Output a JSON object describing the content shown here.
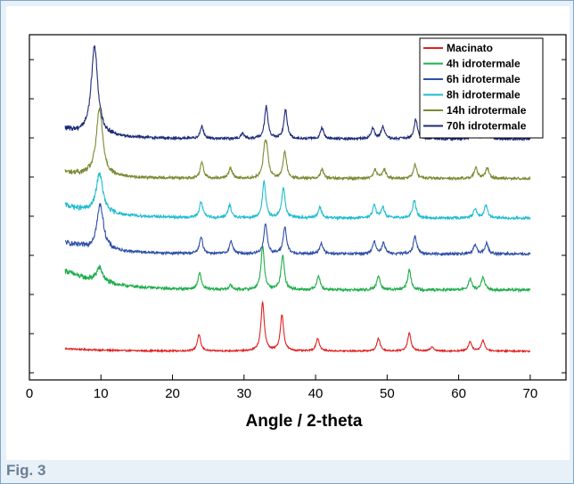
{
  "caption": "Fig. 3",
  "chart_data": {
    "type": "line",
    "title": "",
    "xlabel": "Angle / 2-theta",
    "ylabel": "",
    "xlim": [
      0,
      75
    ],
    "x_ticks": [
      0,
      10,
      20,
      30,
      40,
      50,
      60,
      70
    ],
    "y_ticks_count": 9,
    "y_tick_labels_visible": false,
    "grid": false,
    "legend_position": "top-right",
    "x_range_measured": [
      5,
      70
    ],
    "series": [
      {
        "name": "Macinato",
        "color": "#e02020",
        "baseline": 0.0,
        "low_angle_hump": 0.08,
        "peaks": [
          [
            23.7,
            0.45
          ],
          [
            32.6,
            1.35
          ],
          [
            35.3,
            1.0
          ],
          [
            40.3,
            0.35
          ],
          [
            48.8,
            0.35
          ],
          [
            53.1,
            0.5
          ],
          [
            56.3,
            0.12
          ],
          [
            61.6,
            0.26
          ],
          [
            63.4,
            0.3
          ]
        ]
      },
      {
        "name": "4h idrotermale",
        "color": "#1fae4c",
        "baseline": 1.7,
        "low_angle_hump": 0.6,
        "peaks": [
          [
            9.8,
            0.4
          ],
          [
            23.8,
            0.45
          ],
          [
            28.1,
            0.12
          ],
          [
            32.6,
            1.2
          ],
          [
            35.4,
            0.95
          ],
          [
            40.4,
            0.4
          ],
          [
            48.8,
            0.4
          ],
          [
            53.1,
            0.55
          ],
          [
            61.6,
            0.3
          ],
          [
            63.4,
            0.35
          ]
        ]
      },
      {
        "name": "6h idrotermale",
        "color": "#2e4fa8",
        "baseline": 2.7,
        "low_angle_hump": 0.35,
        "peaks": [
          [
            9.9,
            1.25
          ],
          [
            24.0,
            0.45
          ],
          [
            28.2,
            0.35
          ],
          [
            33.0,
            0.85
          ],
          [
            35.7,
            0.75
          ],
          [
            40.8,
            0.3
          ],
          [
            48.2,
            0.35
          ],
          [
            49.5,
            0.3
          ],
          [
            53.9,
            0.5
          ],
          [
            62.3,
            0.25
          ],
          [
            63.9,
            0.3
          ]
        ]
      },
      {
        "name": "8h idrotermale",
        "color": "#1fbcd0",
        "baseline": 3.7,
        "low_angle_hump": 0.4,
        "peaks": [
          [
            9.8,
            1.1
          ],
          [
            24.0,
            0.45
          ],
          [
            28.0,
            0.35
          ],
          [
            32.8,
            1.0
          ],
          [
            35.5,
            0.85
          ],
          [
            40.6,
            0.3
          ],
          [
            48.2,
            0.35
          ],
          [
            49.4,
            0.3
          ],
          [
            53.8,
            0.5
          ],
          [
            62.3,
            0.25
          ],
          [
            63.8,
            0.35
          ]
        ]
      },
      {
        "name": "14h idrotermale",
        "color": "#7b8a34",
        "baseline": 4.8,
        "low_angle_hump": 0.2,
        "peaks": [
          [
            9.8,
            1.85
          ],
          [
            24.1,
            0.45
          ],
          [
            28.1,
            0.3
          ],
          [
            32.9,
            0.75
          ],
          [
            33.2,
            0.6
          ],
          [
            35.7,
            0.75
          ],
          [
            40.9,
            0.25
          ],
          [
            48.3,
            0.25
          ],
          [
            49.6,
            0.25
          ],
          [
            53.9,
            0.4
          ],
          [
            62.4,
            0.3
          ],
          [
            64.0,
            0.3
          ]
        ]
      },
      {
        "name": "70h idrotermale",
        "color": "#1c2a78",
        "baseline": 5.9,
        "low_angle_hump": 0.3,
        "peaks": [
          [
            9.1,
            2.45
          ],
          [
            24.1,
            0.35
          ],
          [
            29.8,
            0.15
          ],
          [
            33.1,
            0.9
          ],
          [
            35.8,
            0.8
          ],
          [
            40.9,
            0.3
          ],
          [
            48.0,
            0.3
          ],
          [
            49.4,
            0.35
          ],
          [
            54.0,
            0.55
          ],
          [
            62.3,
            0.3
          ],
          [
            63.9,
            0.3
          ]
        ]
      }
    ],
    "ylim": [
      -0.8,
      8.8
    ]
  }
}
